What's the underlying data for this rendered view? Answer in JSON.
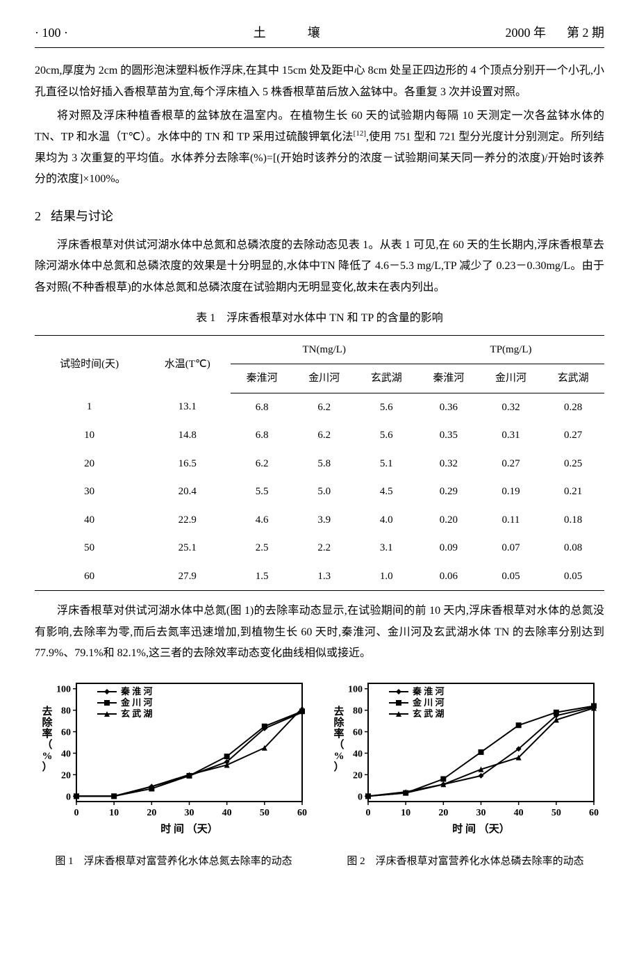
{
  "header": {
    "page": "· 100 ·",
    "title": "土壤",
    "year": "2000 年",
    "issue": "第 2 期"
  },
  "para1": "20cm,厚度为 2cm 的圆形泡沫塑料板作浮床,在其中 15cm 处及距中心 8cm 处呈正四边形的 4 个顶点分别开一个小孔,小孔直径以恰好插入香根草苗为宜,每个浮床植入 5 株香根草苗后放入盆钵中。各重复 3 次并设置对照。",
  "para2_pre": "将对照及浮床种植香根草的盆钵放在温室内。在植物生长 60 天的试验期内每隔 10 天测定一次各盆钵水体的 TN、TP 和水温（T℃）。水体中的 TN 和 TP 采用过硫酸钾氧化法",
  "para2_ref": "[12]",
  "para2_post": ",使用 751 型和 721 型分光度计分别测定。所列结果均为 3 次重复的平均值。水体养分去除率(%)=[(开始时该养分的浓度－试验期间某天同一养分的浓度)/开始时该养分的浓度]×100%。",
  "section": {
    "num": "2",
    "title": "结果与讨论"
  },
  "para3": "浮床香根草对供试河湖水体中总氮和总磷浓度的去除动态见表 1。从表 1 可见,在 60 天的生长期内,浮床香根草去除河湖水体中总氮和总磷浓度的效果是十分明显的,水体中TN 降低了 4.6－5.3 mg/L,TP 减少了 0.23－0.30mg/L。由于各对照(不种香根草)的水体总氮和总磷浓度在试验期内无明显变化,故未在表内列出。",
  "table": {
    "caption": "表 1　浮床香根草对水体中 TN 和 TP 的含量的影响",
    "h_time": "试验时间(天)",
    "h_temp": "水温(T℃)",
    "h_tn": "TN(mg/L)",
    "h_tp": "TP(mg/L)",
    "h_qh": "秦淮河",
    "h_jc": "金川河",
    "h_xw": "玄武湖",
    "rows": [
      [
        "1",
        "13.1",
        "6.8",
        "6.2",
        "5.6",
        "0.36",
        "0.32",
        "0.28"
      ],
      [
        "10",
        "14.8",
        "6.8",
        "6.2",
        "5.6",
        "0.35",
        "0.31",
        "0.27"
      ],
      [
        "20",
        "16.5",
        "6.2",
        "5.8",
        "5.1",
        "0.32",
        "0.27",
        "0.25"
      ],
      [
        "30",
        "20.4",
        "5.5",
        "5.0",
        "4.5",
        "0.29",
        "0.19",
        "0.21"
      ],
      [
        "40",
        "22.9",
        "4.6",
        "3.9",
        "4.0",
        "0.20",
        "0.11",
        "0.18"
      ],
      [
        "50",
        "25.1",
        "2.5",
        "2.2",
        "3.1",
        "0.09",
        "0.07",
        "0.08"
      ],
      [
        "60",
        "27.9",
        "1.5",
        "1.3",
        "1.0",
        "0.06",
        "0.05",
        "0.05"
      ]
    ]
  },
  "para4": "浮床香根草对供试河湖水体中总氮(图 1)的去除率动态显示,在试验期间的前 10 天内,浮床香根草对水体的总氮没有影响,去除率为零,而后去氮率迅速增加,到植物生长 60 天时,秦淮河、金川河及玄武湖水体 TN 的去除率分别达到 77.9%、79.1%和 82.1%,这三者的去除效率动态变化曲线相似或接近。",
  "charts": {
    "x_label": "时   间   （天）",
    "y_label": "去除率（%）",
    "x_ticks": [
      0,
      10,
      20,
      30,
      40,
      50,
      60
    ],
    "legend": [
      "秦 淮 河",
      "金 川 河",
      "玄 武 湖"
    ],
    "fig1": {
      "y_ticks": [
        0,
        20,
        40,
        60,
        80,
        100
      ],
      "series": [
        {
          "marker": "diamond",
          "data": [
            [
              0,
              0
            ],
            [
              10,
              0
            ],
            [
              20,
              9
            ],
            [
              30,
              19
            ],
            [
              40,
              32
            ],
            [
              50,
              63
            ],
            [
              60,
              78
            ]
          ]
        },
        {
          "marker": "square",
          "data": [
            [
              0,
              0
            ],
            [
              10,
              0
            ],
            [
              20,
              7
            ],
            [
              30,
              19
            ],
            [
              40,
              37
            ],
            [
              50,
              65
            ],
            [
              60,
              79
            ]
          ]
        },
        {
          "marker": "triangle",
          "data": [
            [
              0,
              0
            ],
            [
              10,
              0
            ],
            [
              20,
              9
            ],
            [
              30,
              20
            ],
            [
              40,
              29
            ],
            [
              50,
              45
            ],
            [
              60,
              82
            ]
          ]
        }
      ]
    },
    "fig2": {
      "y_ticks": [
        0,
        20,
        40,
        60,
        80,
        100
      ],
      "series": [
        {
          "marker": "diamond",
          "data": [
            [
              0,
              0
            ],
            [
              10,
              3
            ],
            [
              20,
              11
            ],
            [
              30,
              19
            ],
            [
              40,
              44
            ],
            [
              50,
              75
            ],
            [
              60,
              83
            ]
          ]
        },
        {
          "marker": "square",
          "data": [
            [
              0,
              0
            ],
            [
              10,
              3
            ],
            [
              20,
              16
            ],
            [
              30,
              41
            ],
            [
              40,
              66
            ],
            [
              50,
              78
            ],
            [
              60,
              84
            ]
          ]
        },
        {
          "marker": "triangle",
          "data": [
            [
              0,
              0
            ],
            [
              10,
              4
            ],
            [
              20,
              11
            ],
            [
              30,
              25
            ],
            [
              40,
              36
            ],
            [
              50,
              71
            ],
            [
              60,
              82
            ]
          ]
        }
      ]
    }
  },
  "fig_captions": {
    "fig1": "图 1　浮床香根草对富营养化水体总氮去除率的动态",
    "fig2": "图 2　浮床香根草对富营养化水体总磷去除率的动态"
  }
}
